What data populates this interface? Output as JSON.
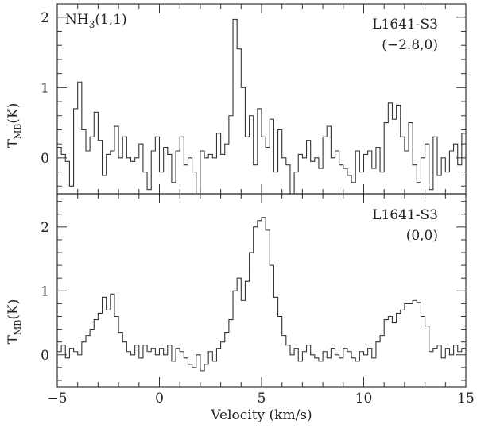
{
  "chart_data": [
    {
      "type": "line",
      "step": true,
      "title": "NH3(1,1)",
      "title_main": "NH",
      "title_sub": "3",
      "title_rest": "(1,1)",
      "source": "L1641-S3",
      "offset": "(−2.8,0)",
      "xlabel": "Velocity (km/s)",
      "ylabel_main": "T",
      "ylabel_sub": "MB",
      "ylabel_rest": "(K)",
      "xlim": [
        -5,
        15
      ],
      "ylim": [
        -0.51,
        2.19
      ],
      "yticks": [
        "0",
        "1",
        "2"
      ],
      "x_start": -5.0,
      "x_step": 0.2,
      "values": [
        0.15,
        0.05,
        -0.05,
        -0.4,
        0.7,
        1.08,
        0.4,
        0.1,
        0.3,
        0.65,
        0.25,
        -0.25,
        0.05,
        0.1,
        0.45,
        0.0,
        0.3,
        0.0,
        -0.05,
        0.0,
        0.2,
        -0.2,
        -0.45,
        0.1,
        0.3,
        -0.2,
        0.15,
        0.05,
        -0.35,
        0.1,
        0.3,
        -0.1,
        0.0,
        -0.2,
        -0.7,
        0.1,
        0.0,
        0.05,
        0.0,
        0.35,
        0.05,
        0.2,
        0.6,
        1.97,
        1.55,
        1.0,
        0.3,
        0.6,
        -0.1,
        0.7,
        0.3,
        0.15,
        0.55,
        -0.2,
        0.4,
        0.0,
        -0.1,
        -0.55,
        -0.2,
        0.05,
        0.0,
        0.25,
        -0.05,
        0.0,
        -0.15,
        0.3,
        0.45,
        0.0,
        0.1,
        -0.1,
        -0.15,
        -0.25,
        -0.35,
        0.1,
        -0.2,
        0.05,
        0.1,
        -0.15,
        0.15,
        -0.2,
        0.5,
        0.78,
        0.55,
        0.75,
        0.3,
        0.1,
        0.5,
        -0.1,
        -0.35,
        0.0,
        0.2,
        -0.45,
        0.3,
        -0.25,
        0.0,
        -0.2,
        0.1,
        0.2,
        -0.1,
        0.35
      ]
    },
    {
      "type": "line",
      "step": true,
      "source": "L1641-S3",
      "offset": "(0,0)",
      "xlabel": "Velocity (km/s)",
      "ylabel_main": "T",
      "ylabel_sub": "MB",
      "ylabel_rest": "(K)",
      "xlim": [
        -5,
        15
      ],
      "ylim": [
        -0.5,
        2.52
      ],
      "xticks": [
        "−5",
        "0",
        "5",
        "10",
        "15"
      ],
      "yticks": [
        "0",
        "1",
        "2"
      ],
      "x_start": -5.0,
      "x_step": 0.2,
      "values": [
        0.05,
        0.15,
        -0.05,
        0.1,
        0.05,
        0.0,
        0.2,
        0.3,
        0.4,
        0.55,
        0.65,
        0.9,
        0.7,
        0.95,
        0.6,
        0.35,
        0.2,
        0.05,
        0.0,
        0.15,
        -0.05,
        0.15,
        0.05,
        0.1,
        0.0,
        0.1,
        0.0,
        0.15,
        -0.1,
        0.1,
        0.05,
        -0.05,
        -0.15,
        -0.2,
        0.0,
        -0.25,
        -0.15,
        0.05,
        -0.1,
        0.1,
        0.2,
        0.35,
        0.55,
        1.0,
        1.2,
        0.85,
        1.15,
        1.6,
        2.0,
        2.1,
        2.15,
        1.95,
        1.4,
        0.9,
        0.6,
        0.3,
        0.15,
        0.0,
        0.1,
        -0.1,
        0.05,
        0.15,
        0.0,
        -0.05,
        -0.1,
        0.05,
        -0.05,
        0.1,
        0.0,
        -0.05,
        0.1,
        0.05,
        -0.05,
        -0.1,
        0.05,
        0.0,
        0.1,
        -0.05,
        0.2,
        0.3,
        0.55,
        0.6,
        0.5,
        0.65,
        0.7,
        0.8,
        0.8,
        0.85,
        0.82,
        0.6,
        0.45,
        0.05,
        0.1,
        0.15,
        -0.05,
        0.1,
        0.0,
        0.15,
        0.05,
        0.1
      ]
    }
  ]
}
